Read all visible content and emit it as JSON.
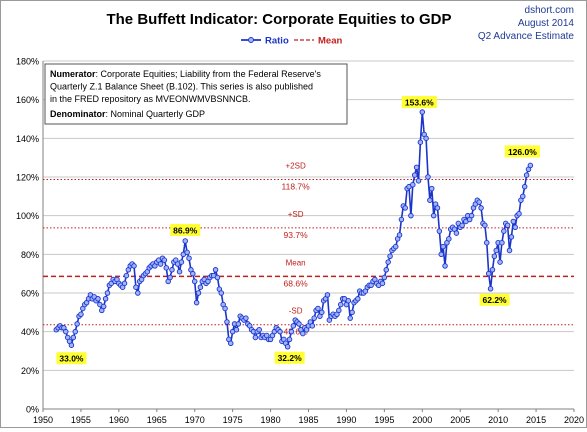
{
  "source": {
    "site": "dshort.com",
    "date": "August 2014",
    "note": "Q2 Advance Estimate"
  },
  "colors": {
    "ratio": "#1c35c8",
    "ratio_fill": "#9fb3ff",
    "ref": "#c0201d",
    "callout_bg": "#ffff33",
    "title": "#000000",
    "source": "#1f3a93"
  },
  "chart_data": {
    "type": "line",
    "title": "The Buffett Indicator: Corporate Equities to GDP",
    "xlabel": "",
    "ylabel": "",
    "xlim": [
      1950,
      2020
    ],
    "ylim": [
      0,
      180
    ],
    "x_ticks": [
      "1950",
      "1955",
      "1960",
      "1965",
      "1970",
      "1975",
      "1980",
      "1985",
      "1990",
      "1995",
      "2000",
      "2005",
      "2010",
      "2015",
      "2020"
    ],
    "y_ticks": [
      "0%",
      "20%",
      "40%",
      "60%",
      "80%",
      "100%",
      "120%",
      "140%",
      "160%",
      "180%"
    ],
    "grid": "horizontal",
    "legend": {
      "position": "top",
      "entries": [
        {
          "name": "Ratio",
          "style": "line-with-markers"
        },
        {
          "name": "Mean",
          "style": "dashed"
        }
      ]
    },
    "series": [
      {
        "name": "Ratio",
        "points": [
          [
            1951.75,
            41
          ],
          [
            1952.0,
            42
          ],
          [
            1952.25,
            43
          ],
          [
            1952.5,
            42
          ],
          [
            1952.75,
            42
          ],
          [
            1953.0,
            40
          ],
          [
            1953.25,
            37
          ],
          [
            1953.5,
            35
          ],
          [
            1953.75,
            33
          ],
          [
            1954.0,
            37
          ],
          [
            1954.25,
            40
          ],
          [
            1954.5,
            44
          ],
          [
            1954.75,
            48
          ],
          [
            1955.0,
            49
          ],
          [
            1955.25,
            52
          ],
          [
            1955.5,
            54
          ],
          [
            1955.75,
            55
          ],
          [
            1956.0,
            57
          ],
          [
            1956.25,
            59
          ],
          [
            1956.5,
            57
          ],
          [
            1956.75,
            58
          ],
          [
            1957.0,
            56
          ],
          [
            1957.25,
            57
          ],
          [
            1957.5,
            54
          ],
          [
            1957.75,
            51
          ],
          [
            1958.0,
            53
          ],
          [
            1958.25,
            57
          ],
          [
            1958.5,
            60
          ],
          [
            1958.75,
            64
          ],
          [
            1959.0,
            65
          ],
          [
            1959.25,
            67
          ],
          [
            1959.5,
            66
          ],
          [
            1959.75,
            67
          ],
          [
            1960.0,
            65
          ],
          [
            1960.25,
            64
          ],
          [
            1960.5,
            63
          ],
          [
            1960.75,
            65
          ],
          [
            1961.0,
            69
          ],
          [
            1961.25,
            72
          ],
          [
            1961.5,
            74
          ],
          [
            1961.75,
            75
          ],
          [
            1962.0,
            74
          ],
          [
            1962.25,
            63
          ],
          [
            1962.5,
            60
          ],
          [
            1962.75,
            66
          ],
          [
            1963.0,
            67
          ],
          [
            1963.25,
            69
          ],
          [
            1963.5,
            70
          ],
          [
            1963.75,
            71
          ],
          [
            1964.0,
            73
          ],
          [
            1964.25,
            74
          ],
          [
            1964.5,
            75
          ],
          [
            1964.75,
            74
          ],
          [
            1965.0,
            76
          ],
          [
            1965.25,
            77
          ],
          [
            1965.5,
            75
          ],
          [
            1965.75,
            78
          ],
          [
            1966.0,
            77
          ],
          [
            1966.25,
            73
          ],
          [
            1966.5,
            66
          ],
          [
            1966.75,
            68
          ],
          [
            1967.0,
            72
          ],
          [
            1967.25,
            76
          ],
          [
            1967.5,
            77
          ],
          [
            1967.75,
            75
          ],
          [
            1968.0,
            71
          ],
          [
            1968.25,
            76
          ],
          [
            1968.5,
            80
          ],
          [
            1968.75,
            86.9
          ],
          [
            1969.0,
            81
          ],
          [
            1969.25,
            78
          ],
          [
            1969.5,
            72
          ],
          [
            1969.75,
            70
          ],
          [
            1970.0,
            66
          ],
          [
            1970.25,
            55
          ],
          [
            1970.5,
            60
          ],
          [
            1970.75,
            63
          ],
          [
            1971.0,
            66
          ],
          [
            1971.25,
            67
          ],
          [
            1971.5,
            65
          ],
          [
            1971.75,
            66
          ],
          [
            1972.0,
            68
          ],
          [
            1972.25,
            69
          ],
          [
            1972.5,
            69
          ],
          [
            1972.75,
            72
          ],
          [
            1973.0,
            68
          ],
          [
            1973.25,
            62
          ],
          [
            1973.5,
            60
          ],
          [
            1973.75,
            54
          ],
          [
            1974.0,
            52
          ],
          [
            1974.25,
            45
          ],
          [
            1974.5,
            36
          ],
          [
            1974.75,
            34
          ],
          [
            1975.0,
            40
          ],
          [
            1975.25,
            44
          ],
          [
            1975.5,
            41
          ],
          [
            1975.75,
            44
          ],
          [
            1976.0,
            48
          ],
          [
            1976.25,
            47
          ],
          [
            1976.5,
            46
          ],
          [
            1976.75,
            47
          ],
          [
            1977.0,
            44
          ],
          [
            1977.25,
            43
          ],
          [
            1977.5,
            41
          ],
          [
            1977.75,
            40
          ],
          [
            1978.0,
            37
          ],
          [
            1978.25,
            40
          ],
          [
            1978.5,
            41
          ],
          [
            1978.75,
            37
          ],
          [
            1979.0,
            38
          ],
          [
            1979.25,
            37
          ],
          [
            1979.5,
            38
          ],
          [
            1979.75,
            36
          ],
          [
            1980.0,
            36
          ],
          [
            1980.25,
            38
          ],
          [
            1980.5,
            40
          ],
          [
            1980.75,
            42
          ],
          [
            1981.0,
            41
          ],
          [
            1981.25,
            40
          ],
          [
            1981.5,
            35
          ],
          [
            1981.75,
            36
          ],
          [
            1982.0,
            34
          ],
          [
            1982.25,
            32.2
          ],
          [
            1982.5,
            36
          ],
          [
            1982.75,
            40
          ],
          [
            1983.0,
            43
          ],
          [
            1983.25,
            46
          ],
          [
            1983.5,
            45
          ],
          [
            1983.75,
            44
          ],
          [
            1984.0,
            41
          ],
          [
            1984.25,
            39
          ],
          [
            1984.5,
            42
          ],
          [
            1984.75,
            41
          ],
          [
            1985.0,
            43
          ],
          [
            1985.25,
            45
          ],
          [
            1985.5,
            43
          ],
          [
            1985.75,
            47
          ],
          [
            1986.0,
            51
          ],
          [
            1986.25,
            52
          ],
          [
            1986.5,
            48
          ],
          [
            1986.75,
            50
          ],
          [
            1987.0,
            56
          ],
          [
            1987.25,
            57
          ],
          [
            1987.5,
            59
          ],
          [
            1987.75,
            46
          ],
          [
            1988.0,
            48
          ],
          [
            1988.25,
            49
          ],
          [
            1988.5,
            48
          ],
          [
            1988.75,
            49
          ],
          [
            1989.0,
            51
          ],
          [
            1989.25,
            54
          ],
          [
            1989.5,
            57
          ],
          [
            1989.75,
            57
          ],
          [
            1990.0,
            54
          ],
          [
            1990.25,
            56
          ],
          [
            1990.5,
            47
          ],
          [
            1990.75,
            50
          ],
          [
            1991.0,
            55
          ],
          [
            1991.25,
            56
          ],
          [
            1991.5,
            57
          ],
          [
            1991.75,
            61
          ],
          [
            1992.0,
            60
          ],
          [
            1992.25,
            60
          ],
          [
            1992.5,
            61
          ],
          [
            1992.75,
            63
          ],
          [
            1993.0,
            64
          ],
          [
            1993.25,
            64
          ],
          [
            1993.5,
            66
          ],
          [
            1993.75,
            67
          ],
          [
            1994.0,
            65
          ],
          [
            1994.25,
            64
          ],
          [
            1994.5,
            66
          ],
          [
            1994.75,
            65
          ],
          [
            1995.0,
            68
          ],
          [
            1995.25,
            72
          ],
          [
            1995.5,
            76
          ],
          [
            1995.75,
            79
          ],
          [
            1996.0,
            82
          ],
          [
            1996.25,
            83
          ],
          [
            1996.5,
            84
          ],
          [
            1996.75,
            88
          ],
          [
            1997.0,
            90
          ],
          [
            1997.25,
            98
          ],
          [
            1997.5,
            105
          ],
          [
            1997.75,
            104
          ],
          [
            1998.0,
            114
          ],
          [
            1998.25,
            115
          ],
          [
            1998.5,
            100
          ],
          [
            1998.75,
            116
          ],
          [
            1999.0,
            121
          ],
          [
            1999.25,
            125
          ],
          [
            1999.5,
            118
          ],
          [
            1999.75,
            138
          ],
          [
            2000.0,
            153.6
          ],
          [
            2000.25,
            142
          ],
          [
            2000.5,
            140
          ],
          [
            2000.75,
            120
          ],
          [
            2001.0,
            108
          ],
          [
            2001.25,
            114
          ],
          [
            2001.5,
            100
          ],
          [
            2001.75,
            106
          ],
          [
            2002.0,
            104
          ],
          [
            2002.25,
            92
          ],
          [
            2002.5,
            80
          ],
          [
            2002.75,
            84
          ],
          [
            2003.0,
            74
          ],
          [
            2003.25,
            86
          ],
          [
            2003.5,
            88
          ],
          [
            2003.75,
            93
          ],
          [
            2004.0,
            94
          ],
          [
            2004.25,
            93
          ],
          [
            2004.5,
            91
          ],
          [
            2004.75,
            96
          ],
          [
            2005.0,
            94
          ],
          [
            2005.25,
            95
          ],
          [
            2005.5,
            98
          ],
          [
            2005.75,
            97
          ],
          [
            2006.0,
            100
          ],
          [
            2006.25,
            98
          ],
          [
            2006.5,
            100
          ],
          [
            2006.75,
            104
          ],
          [
            2007.0,
            106
          ],
          [
            2007.25,
            108
          ],
          [
            2007.5,
            107
          ],
          [
            2007.75,
            104
          ],
          [
            2008.0,
            96
          ],
          [
            2008.25,
            95
          ],
          [
            2008.5,
            86
          ],
          [
            2008.75,
            70
          ],
          [
            2009.0,
            62.2
          ],
          [
            2009.25,
            72
          ],
          [
            2009.5,
            79
          ],
          [
            2009.75,
            82
          ],
          [
            2010.0,
            86
          ],
          [
            2010.25,
            76
          ],
          [
            2010.5,
            86
          ],
          [
            2010.75,
            92
          ],
          [
            2011.0,
            96
          ],
          [
            2011.25,
            95
          ],
          [
            2011.5,
            82
          ],
          [
            2011.75,
            89
          ],
          [
            2012.0,
            97
          ],
          [
            2012.25,
            94
          ],
          [
            2012.5,
            100
          ],
          [
            2012.75,
            101
          ],
          [
            2013.0,
            108
          ],
          [
            2013.25,
            110
          ],
          [
            2013.5,
            115
          ],
          [
            2013.75,
            121
          ],
          [
            2014.0,
            124
          ],
          [
            2014.25,
            126.0
          ]
        ]
      }
    ],
    "reference_lines": [
      {
        "name": "+2SD",
        "label": "+2SD",
        "value_label": "118.7%",
        "value": 118.7,
        "style": "dotted"
      },
      {
        "name": "+SD",
        "label": "+SD",
        "value_label": "93.7%",
        "value": 93.7,
        "style": "dotted"
      },
      {
        "name": "Mean",
        "label": "Mean",
        "value_label": "68.6%",
        "value": 68.6,
        "style": "dashed"
      },
      {
        "name": "-SD",
        "label": "-SD",
        "value_label": "43.6%",
        "value": 43.6,
        "style": "dotted"
      }
    ],
    "callouts": [
      {
        "text": "33.0%",
        "x": 1953.75,
        "y": 33.0,
        "dx": 0,
        "dy": 14
      },
      {
        "text": "86.9%",
        "x": 1968.75,
        "y": 86.9,
        "dx": 0,
        "dy": -10
      },
      {
        "text": "32.2%",
        "x": 1982.25,
        "y": 32.2,
        "dx": 2,
        "dy": 12
      },
      {
        "text": "153.6%",
        "x": 2000.0,
        "y": 153.6,
        "dx": -3,
        "dy": -9
      },
      {
        "text": "62.2%",
        "x": 2009.0,
        "y": 62.2,
        "dx": 4,
        "dy": 12
      },
      {
        "text": "126.0%",
        "x": 2014.25,
        "y": 126.0,
        "dx": -8,
        "dy": -13
      }
    ],
    "annotation": {
      "lines": [
        [
          {
            "b": "Numerator"
          },
          {
            "t": ": Corporate Equities; Liability from the Federal Reserve's"
          }
        ],
        [
          {
            "t": "Quarterly Z.1 Balance Sheet (B.102). This series is also published"
          }
        ],
        [
          {
            "t": "in the FRED repository  as MVEONWMVBSNNCB."
          }
        ],
        [
          {
            "b": "Denominator"
          },
          {
            "t": ": Nominal Quarterly GDP"
          }
        ]
      ]
    }
  }
}
